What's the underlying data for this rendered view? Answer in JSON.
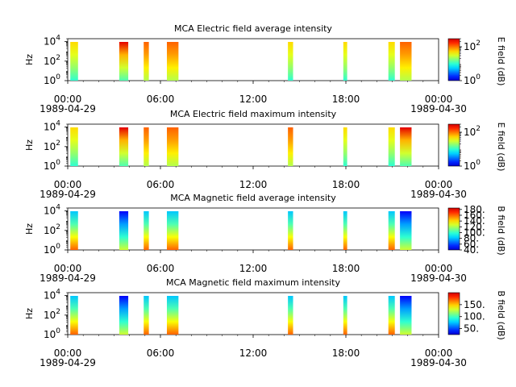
{
  "figure": {
    "time_ticks": [
      "00:00",
      "06:00",
      "12:00",
      "18:00",
      "00:00"
    ],
    "date_start": "1989-04-29",
    "date_end": "1989-04-30",
    "y_label": "Hz"
  },
  "chart_data": [
    {
      "type": "heatmap",
      "title": "MCA  Electric field average intensity",
      "xlabel": "",
      "ylabel": "Hz",
      "x_range": [
        "1989-04-29 00:00",
        "1989-04-30 00:00"
      ],
      "y_scale": "log",
      "y_range": [
        1,
        20000
      ],
      "y_ticks": [
        {
          "value": 1,
          "base": "10",
          "exp": "0"
        },
        {
          "value": 100,
          "base": "10",
          "exp": "2"
        },
        {
          "value": 10000,
          "base": "10",
          "exp": "4"
        }
      ],
      "colorbar": {
        "label": "E field (dB)",
        "scale": "log",
        "range": [
          1,
          300
        ],
        "ticks": [
          {
            "value": 1,
            "base": "10",
            "exp": "0"
          },
          {
            "value": 100,
            "base": "10",
            "exp": "2"
          }
        ]
      },
      "passes": [
        {
          "start": "00:10",
          "end": "00:40",
          "tone": "green"
        },
        {
          "start": "03:20",
          "end": "03:55",
          "tone": "mixed"
        },
        {
          "start": "04:55",
          "end": "05:15",
          "tone": "yellow"
        },
        {
          "start": "06:25",
          "end": "07:10",
          "tone": "yellow"
        },
        {
          "start": "14:15",
          "end": "14:35",
          "tone": "green"
        },
        {
          "start": "17:50",
          "end": "18:05",
          "tone": "green"
        },
        {
          "start": "20:45",
          "end": "21:10",
          "tone": "green"
        },
        {
          "start": "21:30",
          "end": "22:15",
          "tone": "yellow"
        }
      ]
    },
    {
      "type": "heatmap",
      "title": "MCA  Electric field maximum intensity",
      "xlabel": "",
      "ylabel": "Hz",
      "x_range": [
        "1989-04-29 00:00",
        "1989-04-30 00:00"
      ],
      "y_scale": "log",
      "y_range": [
        1,
        20000
      ],
      "y_ticks": [
        {
          "value": 1,
          "base": "10",
          "exp": "0"
        },
        {
          "value": 100,
          "base": "10",
          "exp": "2"
        },
        {
          "value": 10000,
          "base": "10",
          "exp": "4"
        }
      ],
      "colorbar": {
        "label": "E field (dB)",
        "scale": "log",
        "range": [
          1,
          300
        ],
        "ticks": [
          {
            "value": 1,
            "base": "10",
            "exp": "0"
          },
          {
            "value": 100,
            "base": "10",
            "exp": "2"
          }
        ]
      },
      "passes": [
        {
          "start": "00:10",
          "end": "00:40",
          "tone": "green"
        },
        {
          "start": "03:20",
          "end": "03:55",
          "tone": "mixed"
        },
        {
          "start": "04:55",
          "end": "05:15",
          "tone": "yellow"
        },
        {
          "start": "06:25",
          "end": "07:10",
          "tone": "yellow"
        },
        {
          "start": "14:15",
          "end": "14:35",
          "tone": "yellow"
        },
        {
          "start": "17:50",
          "end": "18:05",
          "tone": "green"
        },
        {
          "start": "20:45",
          "end": "21:10",
          "tone": "green"
        },
        {
          "start": "21:30",
          "end": "22:15",
          "tone": "mixed"
        }
      ]
    },
    {
      "type": "heatmap",
      "title": "MCA  Magnetic field average intensity",
      "xlabel": "",
      "ylabel": "Hz",
      "x_range": [
        "1989-04-29 00:00",
        "1989-04-30 00:00"
      ],
      "y_scale": "log",
      "y_range": [
        1,
        20000
      ],
      "y_ticks": [
        {
          "value": 1,
          "base": "10",
          "exp": "0"
        },
        {
          "value": 100,
          "base": "10",
          "exp": "2"
        },
        {
          "value": 10000,
          "base": "10",
          "exp": "4"
        }
      ],
      "colorbar": {
        "label": "B field (dB)",
        "scale": "linear",
        "range": [
          40,
          185
        ],
        "ticks": [
          {
            "value": 40,
            "text": "40."
          },
          {
            "value": 60,
            "text": "60."
          },
          {
            "value": 80,
            "text": "80."
          },
          {
            "value": 100,
            "text": "100."
          },
          {
            "value": 120,
            "text": "120."
          },
          {
            "value": 140,
            "text": "140."
          },
          {
            "value": 160,
            "text": "160."
          },
          {
            "value": 180,
            "text": "180."
          }
        ]
      },
      "passes": [
        {
          "start": "00:10",
          "end": "00:40",
          "tone": "cyan"
        },
        {
          "start": "03:20",
          "end": "03:55",
          "tone": "blue"
        },
        {
          "start": "04:55",
          "end": "05:15",
          "tone": "cyan"
        },
        {
          "start": "06:25",
          "end": "07:10",
          "tone": "cyan"
        },
        {
          "start": "14:15",
          "end": "14:35",
          "tone": "cyan"
        },
        {
          "start": "17:50",
          "end": "18:05",
          "tone": "cyan"
        },
        {
          "start": "20:45",
          "end": "21:10",
          "tone": "cyan"
        },
        {
          "start": "21:30",
          "end": "22:15",
          "tone": "blue"
        }
      ]
    },
    {
      "type": "heatmap",
      "title": "MCA  Magnetic field maximum intensity",
      "xlabel": "",
      "ylabel": "Hz",
      "x_range": [
        "1989-04-29 00:00",
        "1989-04-30 00:00"
      ],
      "y_scale": "log",
      "y_range": [
        1,
        20000
      ],
      "y_ticks": [
        {
          "value": 1,
          "base": "10",
          "exp": "0"
        },
        {
          "value": 100,
          "base": "10",
          "exp": "2"
        },
        {
          "value": 10000,
          "base": "10",
          "exp": "4"
        }
      ],
      "colorbar": {
        "label": "B field (dB)",
        "scale": "linear",
        "range": [
          25,
          200
        ],
        "ticks": [
          {
            "value": 50,
            "text": "50."
          },
          {
            "value": 100,
            "text": "100."
          },
          {
            "value": 150,
            "text": "150."
          }
        ]
      },
      "passes": [
        {
          "start": "00:10",
          "end": "00:40",
          "tone": "cyan"
        },
        {
          "start": "03:20",
          "end": "03:55",
          "tone": "blue"
        },
        {
          "start": "04:55",
          "end": "05:15",
          "tone": "cyan"
        },
        {
          "start": "06:25",
          "end": "07:10",
          "tone": "cyan"
        },
        {
          "start": "14:15",
          "end": "14:35",
          "tone": "cyan"
        },
        {
          "start": "17:50",
          "end": "18:05",
          "tone": "cyan"
        },
        {
          "start": "20:45",
          "end": "21:10",
          "tone": "cyan"
        },
        {
          "start": "21:30",
          "end": "22:15",
          "tone": "blue"
        }
      ]
    }
  ]
}
